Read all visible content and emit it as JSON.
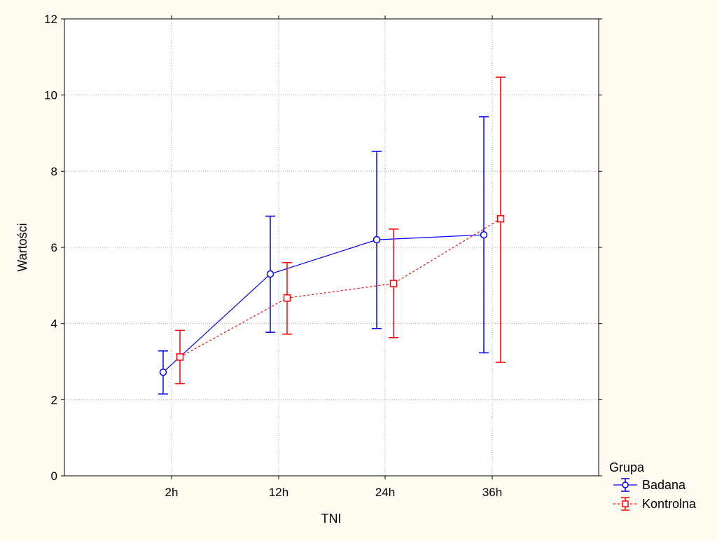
{
  "chart_data": {
    "type": "line",
    "title": "",
    "xlabel": "TNI",
    "ylabel": "Wartości",
    "categories": [
      "2h",
      "12h",
      "24h",
      "36h"
    ],
    "ylim": [
      0,
      12
    ],
    "yticks": [
      "0",
      "2",
      "4",
      "6",
      "8",
      "10",
      "12"
    ],
    "grid": true,
    "legend_title": "Grupa",
    "legend_position": "bottom-right",
    "series": [
      {
        "name": "Badana",
        "color": "#0000ff",
        "marker": "circle",
        "line_style": "solid",
        "values": [
          2.72,
          5.3,
          6.2,
          6.33
        ],
        "lower": [
          2.15,
          3.77,
          3.87,
          3.23
        ],
        "upper": [
          3.28,
          6.82,
          8.52,
          9.43
        ]
      },
      {
        "name": "Kontrolna",
        "color": "#ff0000",
        "marker": "square",
        "line_style": "dashed",
        "values": [
          3.12,
          4.67,
          5.05,
          6.75
        ],
        "lower": [
          2.42,
          3.72,
          3.63,
          2.98
        ],
        "upper": [
          3.82,
          5.6,
          6.48,
          10.47
        ]
      }
    ]
  }
}
